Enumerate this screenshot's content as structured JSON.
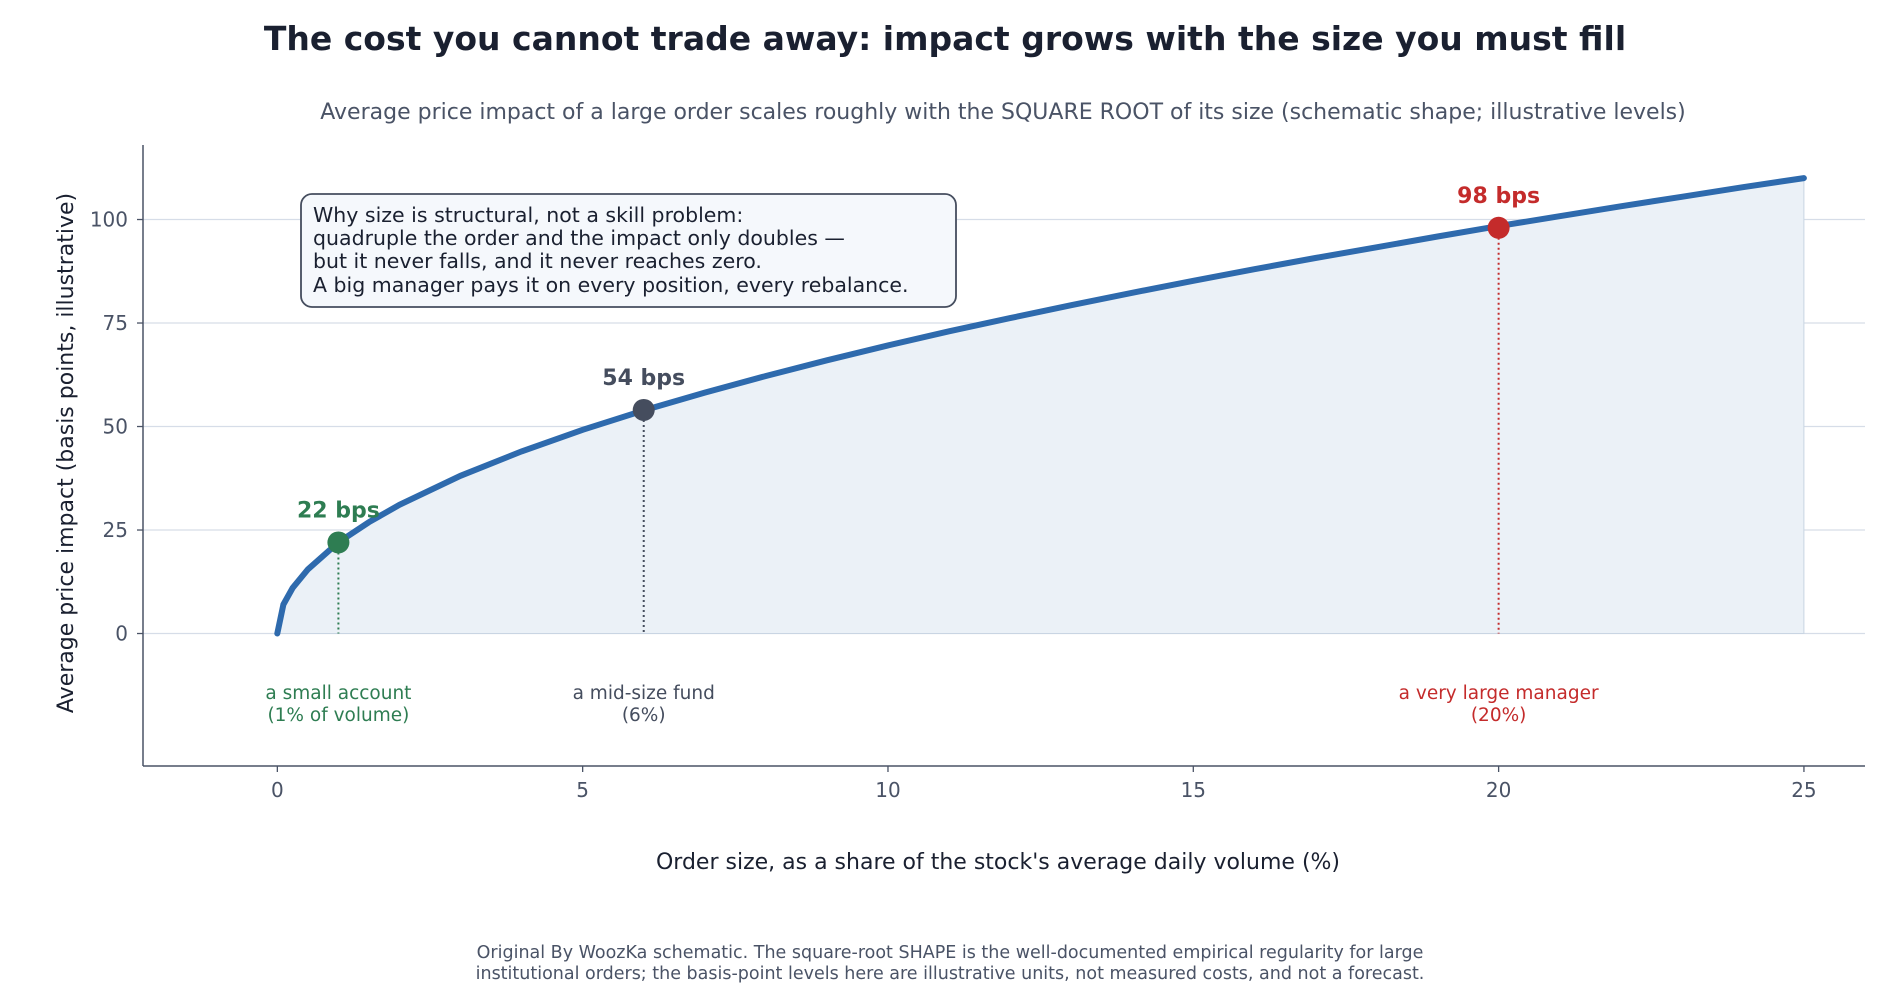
{
  "chart_data": {
    "type": "line",
    "title": "The cost you cannot trade away: impact grows with the size you must fill",
    "subtitle": "Average price impact of a large order scales roughly with the SQUARE ROOT of its size (schematic shape; illustrative levels)",
    "xlabel": "Order size, as a share of the stock's average daily volume  (%)",
    "ylabel": "Average price impact  (basis points, illustrative)",
    "xlim": [
      -2.2,
      26
    ],
    "ylim": [
      -32,
      118
    ],
    "xticks": [
      0,
      5,
      10,
      15,
      20,
      25
    ],
    "yticks": [
      0,
      25,
      50,
      75,
      100
    ],
    "grid": "horizontal",
    "series": [
      {
        "color": "#2e6aad",
        "fill": "#ebf1f7",
        "x": [
          0,
          0.1,
          0.25,
          0.5,
          1,
          1.5,
          2,
          3,
          4,
          5,
          6,
          7,
          8,
          9,
          10,
          11,
          12,
          13,
          14,
          15,
          16,
          17,
          18,
          19,
          20,
          21,
          22,
          23,
          24,
          25
        ],
        "y": [
          0,
          7,
          11,
          15.5,
          22,
          26.9,
          31.1,
          38.1,
          44,
          49.2,
          53.9,
          58.2,
          62.2,
          66,
          69.6,
          73,
          76.2,
          79.3,
          82.3,
          85.2,
          88,
          90.7,
          93.3,
          95.9,
          98.4,
          100.8,
          103.2,
          105.5,
          107.8,
          110
        ]
      }
    ],
    "highlights": [
      {
        "x": 1,
        "y": 22,
        "label": "22 bps",
        "category_line1": "a small account",
        "category_line2": "(1% of volume)",
        "color": "#2e7d52"
      },
      {
        "x": 6,
        "y": 54,
        "label": "54 bps",
        "category_line1": "a mid-size fund",
        "category_line2": "(6%)",
        "color": "#454d5e"
      },
      {
        "x": 20,
        "y": 98,
        "label": "98 bps",
        "category_line1": "a very large manager",
        "category_line2": "(20%)",
        "color": "#c42b2b"
      }
    ],
    "annotation": [
      "Why size is structural, not a skill problem:",
      "quadruple the order and the impact only doubles —",
      "but it never falls, and it never reaches zero.",
      "A big manager pays it on every position, every rebalance."
    ]
  },
  "footer": {
    "line1": "Original By WoozKa schematic. The square-root SHAPE is the well-documented empirical regularity for large",
    "line2": "institutional orders; the basis-point levels here are illustrative units, not measured costs, and not a forecast."
  }
}
